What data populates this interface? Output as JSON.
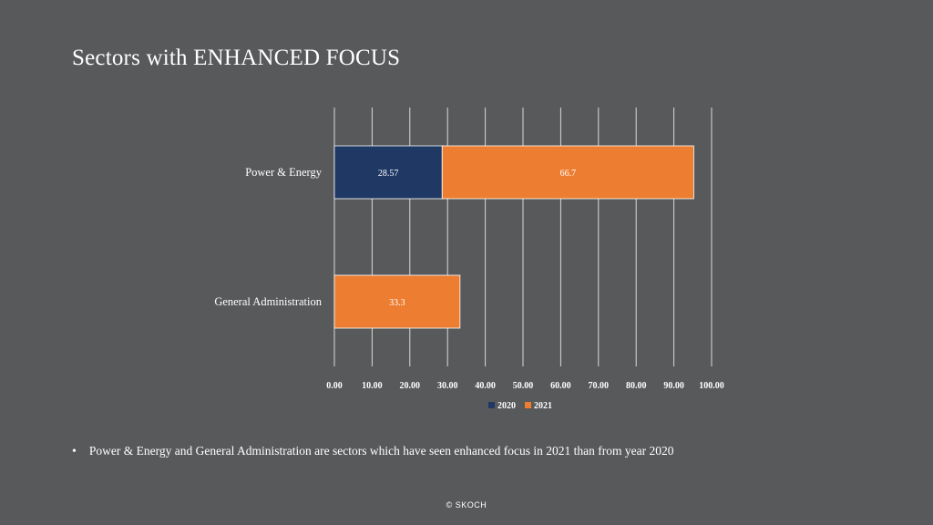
{
  "slide": {
    "title": "Sectors with ENHANCED FOCUS",
    "bullet": "Power & Energy and General Administration are sectors which have seen enhanced focus in 2021 than from year 2020",
    "footer": "© SKOCH"
  },
  "chart_data": {
    "type": "bar",
    "orientation": "horizontal",
    "stacked": true,
    "categories": [
      "Power & Energy",
      "General Administration"
    ],
    "series": [
      {
        "name": "2020",
        "values": [
          28.57,
          null
        ],
        "labels": [
          "28.57",
          ""
        ],
        "color": "#1f3864"
      },
      {
        "name": "2021",
        "values": [
          66.7,
          33.3
        ],
        "labels": [
          "66.7",
          "33.3"
        ],
        "color": "#ed7d31"
      }
    ],
    "xlim": [
      0,
      100
    ],
    "xticks": [
      "0.00",
      "10.00",
      "20.00",
      "30.00",
      "40.00",
      "50.00",
      "60.00",
      "70.00",
      "80.00",
      "90.00",
      "100.00"
    ],
    "grid": "vertical",
    "legend": "bottom",
    "title": "",
    "xlabel": "",
    "ylabel": ""
  }
}
